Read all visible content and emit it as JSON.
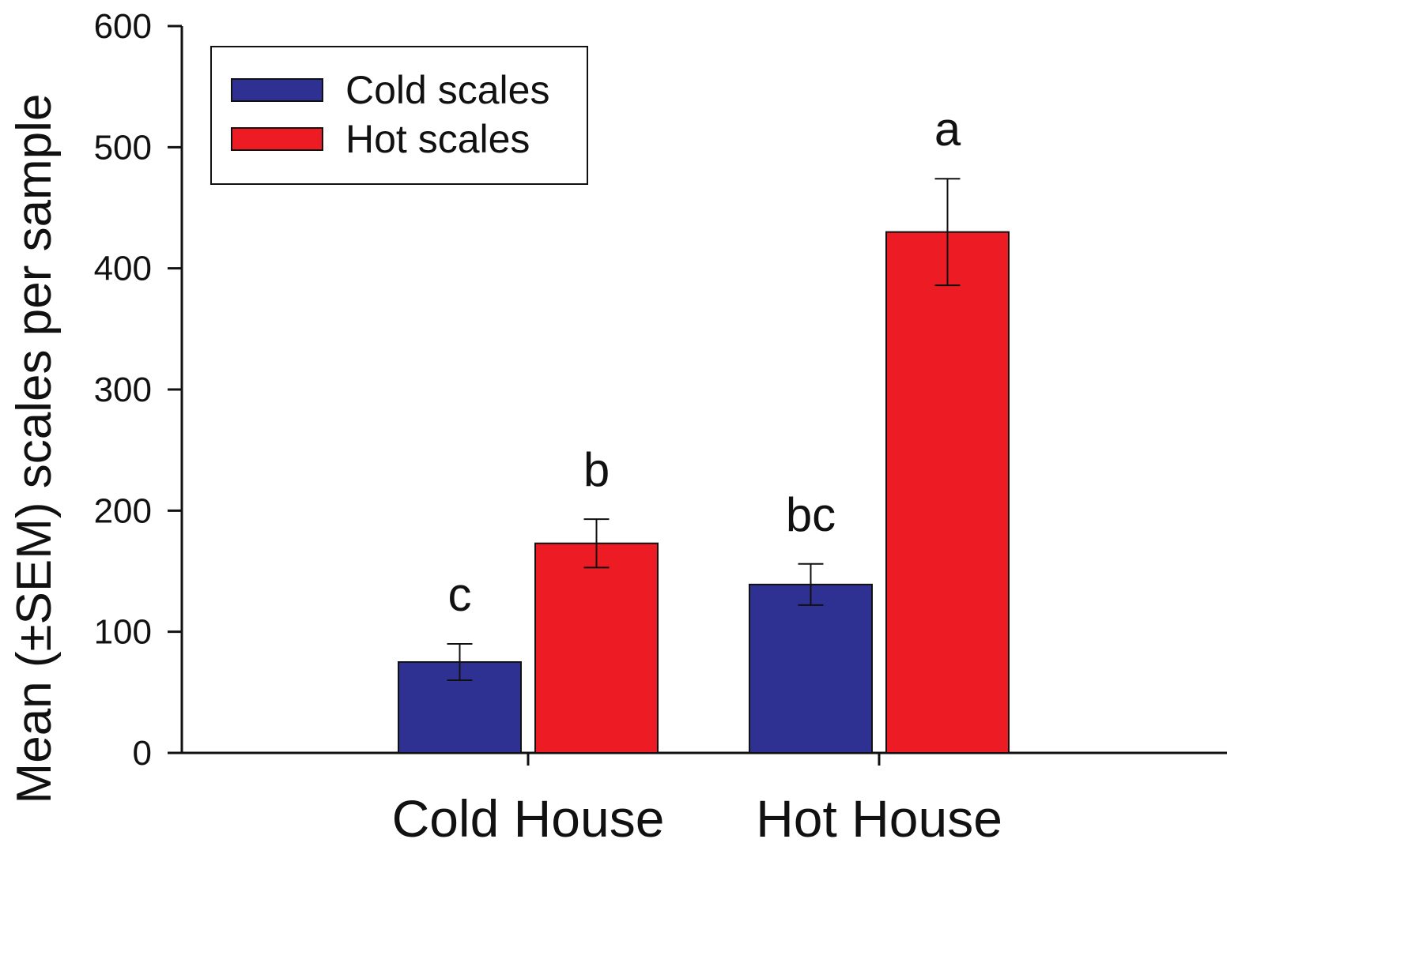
{
  "chart_data": {
    "type": "bar",
    "ylabel": "Mean (±SEM) scales per sample",
    "xlabel": "",
    "ylim": [
      0,
      600
    ],
    "yticks": [
      0,
      100,
      200,
      300,
      400,
      500,
      600
    ],
    "categories": [
      "Cold House",
      "Hot House"
    ],
    "series": [
      {
        "name": "Cold scales",
        "color": "#2e3192",
        "values": [
          75,
          139
        ],
        "sem": [
          15,
          17
        ],
        "sig_labels": [
          "c",
          "bc"
        ]
      },
      {
        "name": "Hot scales",
        "color": "#ed1c24",
        "values": [
          173,
          430
        ],
        "sem": [
          20,
          44
        ],
        "sig_labels": [
          "b",
          "a"
        ]
      }
    ],
    "legend_position": "top-left",
    "grid": false
  }
}
